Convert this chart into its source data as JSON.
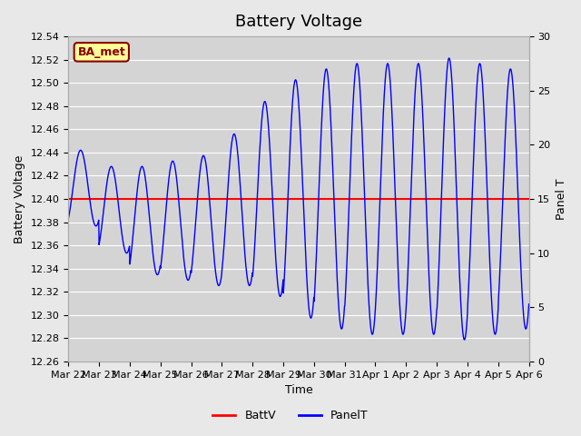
{
  "title": "Battery Voltage",
  "xlabel": "Time",
  "ylabel_left": "Battery Voltage",
  "ylabel_right": "Panel T",
  "legend_label1": "BattV",
  "legend_label2": "PanelT",
  "station_label": "BA_met",
  "batt_v": 12.4,
  "ylim_left": [
    12.26,
    12.54
  ],
  "ylim_right": [
    0,
    30
  ],
  "yticks_left": [
    12.26,
    12.28,
    12.3,
    12.32,
    12.34,
    12.36,
    12.38,
    12.4,
    12.42,
    12.44,
    12.46,
    12.48,
    12.5,
    12.52,
    12.54
  ],
  "yticks_right": [
    0,
    5,
    10,
    15,
    20,
    25,
    30
  ],
  "x_tick_labels": [
    "Mar 22",
    "Mar 23",
    "Mar 24",
    "Mar 25",
    "Mar 26",
    "Mar 27",
    "Mar 28",
    "Mar 29",
    "Mar 30",
    "Mar 31",
    "Apr 1",
    "Apr 2",
    "Apr 3",
    "Apr 4",
    "Apr 5",
    "Apr 6"
  ],
  "n_days": 15,
  "line_color_batt": "#ff0000",
  "line_color_panel": "#0000ff",
  "background_color": "#e8e8e8",
  "plot_bg_color": "#d4d4d4",
  "grid_color": "#ffffff",
  "title_fontsize": 13,
  "axis_label_fontsize": 9,
  "tick_fontsize": 8
}
